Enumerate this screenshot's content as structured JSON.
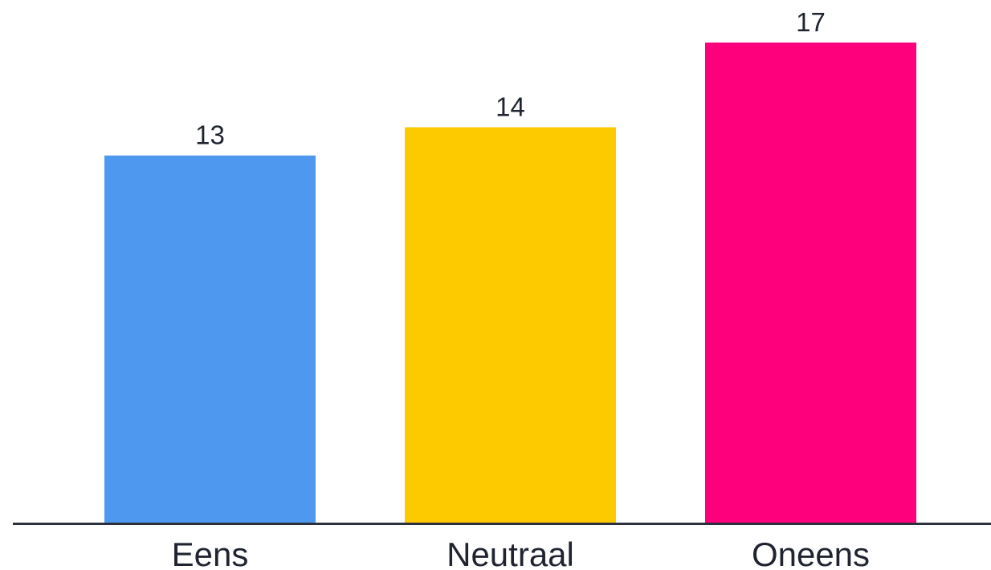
{
  "chart_data": {
    "type": "bar",
    "categories": [
      "Eens",
      "Neutraal",
      "Oneens"
    ],
    "values": [
      13,
      14,
      17
    ],
    "colors": [
      "#4f98f0",
      "#fdca00",
      "#ff007c"
    ],
    "axis_color": "#2b2f3e",
    "ylim": [
      0,
      17
    ],
    "grid": false,
    "legend": "none",
    "data_labels": true
  }
}
